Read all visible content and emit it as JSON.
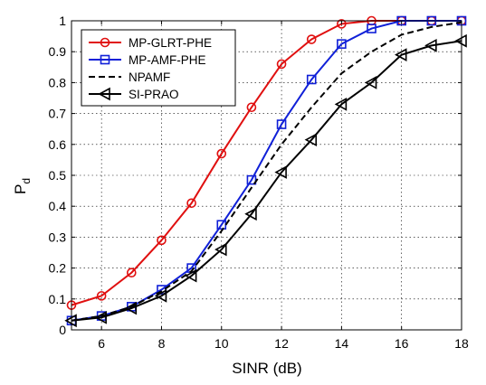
{
  "chart_data": {
    "type": "line",
    "xlabel": "SINR (dB)",
    "ylabel": "P",
    "ylabel_subscript": "d",
    "xlim": [
      5,
      18
    ],
    "ylim": [
      0,
      1
    ],
    "xticks": [
      6,
      8,
      10,
      12,
      14,
      16,
      18
    ],
    "yticks": [
      0,
      0.1,
      0.2,
      0.3,
      0.4,
      0.5,
      0.6,
      0.7,
      0.8,
      0.9,
      1
    ],
    "xtick_labels": [
      "6",
      "8",
      "10",
      "12",
      "14",
      "16",
      "18"
    ],
    "ytick_labels": [
      "0",
      "0.1",
      "0.2",
      "0.3",
      "0.4",
      "0.5",
      "0.6",
      "0.7",
      "0.8",
      "0.9",
      "1"
    ],
    "grid": true,
    "legend_position": "top-left",
    "x": [
      5,
      6,
      7,
      8,
      9,
      10,
      11,
      12,
      13,
      14,
      15,
      16,
      17,
      18
    ],
    "series": [
      {
        "name": "MP-GLRT-PHE",
        "color": "#e01010",
        "dash": "solid",
        "marker": "circle",
        "values": [
          0.08,
          0.11,
          0.185,
          0.29,
          0.41,
          0.57,
          0.72,
          0.86,
          0.94,
          0.99,
          1.0,
          1.0,
          1.0,
          1.0
        ]
      },
      {
        "name": "MP-AMF-PHE",
        "color": "#1020d8",
        "dash": "solid",
        "marker": "square",
        "values": [
          0.03,
          0.045,
          0.075,
          0.13,
          0.2,
          0.34,
          0.485,
          0.665,
          0.81,
          0.925,
          0.975,
          1.0,
          1.0,
          1.0
        ]
      },
      {
        "name": "NPAMF",
        "color": "#000000",
        "dash": "dashed",
        "marker": "none",
        "values": [
          0.03,
          0.045,
          0.075,
          0.125,
          0.19,
          0.32,
          0.46,
          0.6,
          0.72,
          0.83,
          0.9,
          0.955,
          0.98,
          0.995
        ]
      },
      {
        "name": "SI-PRAO",
        "color": "#000000",
        "dash": "solid",
        "marker": "triangle-left",
        "values": [
          0.03,
          0.04,
          0.07,
          0.11,
          0.175,
          0.26,
          0.375,
          0.51,
          0.615,
          0.73,
          0.8,
          0.89,
          0.92,
          0.935
        ]
      }
    ]
  }
}
